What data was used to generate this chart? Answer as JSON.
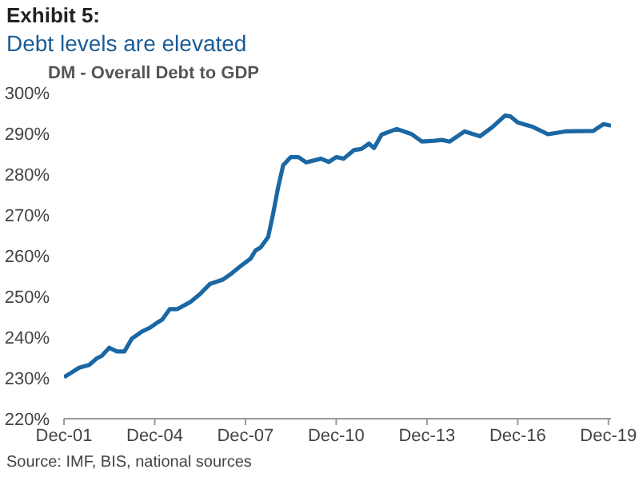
{
  "chart_data": {
    "type": "line",
    "title": "Exhibit 5:",
    "subtitle": "Debt levels are elevated",
    "annotations": [
      "DM - Overall Debt to GDP",
      "Source: IMF, BIS, national sources"
    ],
    "x": [
      "2001-12",
      "2002-03",
      "2002-06",
      "2002-10",
      "2003-01",
      "2003-03",
      "2003-06",
      "2003-09",
      "2003-12",
      "2004-03",
      "2004-07",
      "2004-10",
      "2005-01",
      "2005-03",
      "2005-06",
      "2005-09",
      "2006-02",
      "2006-06",
      "2006-10",
      "2007-03",
      "2007-06",
      "2007-10",
      "2008-02",
      "2008-04",
      "2008-06",
      "2008-09",
      "2008-11",
      "2009-01",
      "2009-03",
      "2009-06",
      "2009-09",
      "2009-12",
      "2010-06",
      "2010-09",
      "2010-12",
      "2011-03",
      "2011-07",
      "2011-10",
      "2012-01",
      "2012-03",
      "2012-06",
      "2012-12",
      "2013-06",
      "2013-10",
      "2014-03",
      "2014-06",
      "2014-09",
      "2015-03",
      "2015-09",
      "2016-02",
      "2016-07",
      "2016-09",
      "2016-12",
      "2017-06",
      "2017-12",
      "2018-03",
      "2018-07",
      "2019-06",
      "2019-10",
      "2020-01"
    ],
    "series": [
      {
        "color": "#1a67a3",
        "values": [
          230.2,
          231.3,
          232.5,
          233.2,
          234.8,
          235.4,
          237.4,
          236.5,
          236.5,
          239.7,
          241.4,
          242.3,
          243.6,
          244.3,
          246.9,
          246.9,
          248.6,
          250.6,
          253.1,
          254.1,
          255.4,
          257.4,
          259.3,
          261.3,
          262.0,
          264.6,
          270.5,
          277.0,
          282.2,
          284.2,
          284.2,
          282.9,
          283.8,
          283.0,
          284.2,
          283.8,
          285.9,
          286.2,
          287.5,
          286.4,
          289.7,
          291.1,
          289.8,
          288.0,
          288.2,
          288.4,
          288.0,
          290.5,
          289.3,
          291.6,
          294.4,
          294.2,
          292.7,
          291.6,
          289.8,
          290.1,
          290.5,
          290.6,
          292.3,
          291.9
        ]
      }
    ],
    "xlim": [
      "2001-12",
      "2020-01"
    ],
    "xticks": [
      {
        "value": "2001-12",
        "label": "Dec-01"
      },
      {
        "value": "2004-12",
        "label": "Dec-04"
      },
      {
        "value": "2007-12",
        "label": "Dec-07"
      },
      {
        "value": "2010-12",
        "label": "Dec-10"
      },
      {
        "value": "2013-12",
        "label": "Dec-13"
      },
      {
        "value": "2016-12",
        "label": "Dec-16"
      },
      {
        "value": "2019-12",
        "label": "Dec-19"
      }
    ],
    "ylim": [
      220,
      300
    ],
    "yticks": [
      {
        "value": 220,
        "label": "220%"
      },
      {
        "value": 230,
        "label": "230%"
      },
      {
        "value": 240,
        "label": "240%"
      },
      {
        "value": 250,
        "label": "250%"
      },
      {
        "value": 260,
        "label": "260%"
      },
      {
        "value": 270,
        "label": "270%"
      },
      {
        "value": 280,
        "label": "280%"
      },
      {
        "value": 290,
        "label": "290%"
      },
      {
        "value": 300,
        "label": "300%"
      }
    ],
    "grid": false,
    "legend": false,
    "marker": "none",
    "line_style": "solid"
  }
}
